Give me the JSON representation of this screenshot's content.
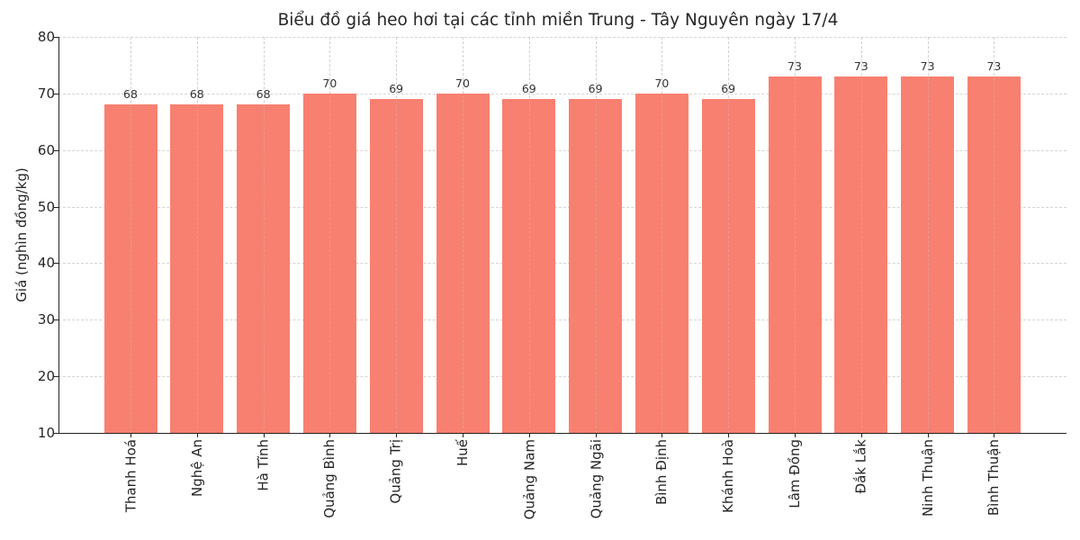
{
  "chart_data": {
    "type": "bar",
    "title": "Biểu đồ giá heo hơi tại các tỉnh miền Trung - Tây Nguyên ngày 17/4",
    "xlabel": "",
    "ylabel": "Giá (nghìn đồng/kg)",
    "ylim": [
      10,
      80
    ],
    "yticks": [
      10,
      20,
      30,
      40,
      50,
      60,
      70,
      80
    ],
    "grid": true,
    "bar_color": "#f88070",
    "categories": [
      "Thanh Hoá",
      "Nghệ An",
      "Hà Tĩnh",
      "Quảng Bình",
      "Quảng Trị",
      "Huế",
      "Quảng Nam",
      "Quảng Ngãi",
      "Bình Định",
      "Khánh Hoà",
      "Lâm Đồng",
      "Đắk Lắk",
      "Ninh Thuận",
      "Bình Thuận"
    ],
    "values": [
      68,
      68,
      68,
      70,
      69,
      70,
      69,
      69,
      70,
      69,
      73,
      73,
      73,
      73
    ]
  }
}
